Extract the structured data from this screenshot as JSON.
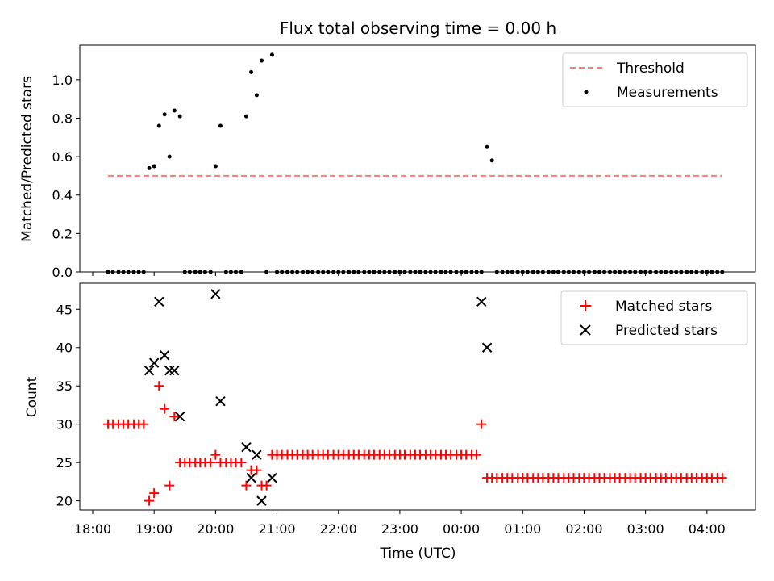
{
  "chart_data": [
    {
      "type": "scatter",
      "title": "Flux total observing time = 0.00 h",
      "xlabel": "",
      "ylabel": "Matched/Predicted stars",
      "ylim": [
        0,
        1.18
      ],
      "yticks": [
        0.0,
        0.2,
        0.4,
        0.6,
        0.8,
        1.0
      ],
      "ytick_labels": [
        "0.0",
        "0.2",
        "0.4",
        "0.6",
        "0.8",
        "1.0"
      ],
      "xlim_hours": [
        17.79,
        28.79
      ],
      "legend": {
        "placement": "top-right",
        "entries": [
          "Threshold",
          "Measurements"
        ]
      },
      "series": [
        {
          "name": "Threshold",
          "kind": "dashed-line",
          "color": "#ff7777",
          "x": [
            18.25,
            28.25
          ],
          "y": [
            0.5,
            0.5
          ]
        },
        {
          "name": "Measurements",
          "kind": "dots",
          "color": "#000000",
          "x": [
            18.25,
            18.33,
            18.42,
            18.5,
            18.58,
            18.67,
            18.75,
            18.83,
            18.92,
            19.0,
            19.08,
            19.17,
            19.25,
            19.33,
            19.42,
            19.5,
            19.58,
            19.67,
            19.75,
            19.83,
            19.92,
            20.0,
            20.08,
            20.17,
            20.25,
            20.33,
            20.42,
            20.5,
            20.58,
            20.67,
            20.75,
            20.83,
            20.92,
            21.0,
            21.08,
            21.17,
            21.25,
            21.33,
            21.42,
            21.5,
            21.58,
            21.67,
            21.75,
            21.83,
            21.92,
            22.0,
            22.08,
            22.17,
            22.25,
            22.33,
            22.42,
            22.5,
            22.58,
            22.67,
            22.75,
            22.83,
            22.92,
            23.0,
            23.08,
            23.17,
            23.25,
            23.33,
            23.42,
            23.5,
            23.58,
            23.67,
            23.75,
            23.83,
            23.92,
            24.0,
            24.08,
            24.17,
            24.25,
            24.33,
            24.42,
            24.5,
            24.58,
            24.67,
            24.75,
            24.83,
            24.92,
            25.0,
            25.08,
            25.17,
            25.25,
            25.33,
            25.42,
            25.5,
            25.58,
            25.67,
            25.75,
            25.83,
            25.92,
            26.0,
            26.08,
            26.17,
            26.25,
            26.33,
            26.42,
            26.5,
            26.58,
            26.67,
            26.75,
            26.83,
            26.92,
            27.0,
            27.08,
            27.17,
            27.25,
            27.33,
            27.42,
            27.5,
            27.58,
            27.67,
            27.75,
            27.83,
            27.92,
            28.0,
            28.08,
            28.17,
            28.25
          ],
          "y": [
            0,
            0,
            0,
            0,
            0,
            0,
            0,
            0,
            0.54,
            0.55,
            0.76,
            0.82,
            0.6,
            0.84,
            0.81,
            0,
            0,
            0,
            0,
            0,
            0,
            0.55,
            0.76,
            0,
            0,
            0,
            0,
            0.81,
            1.04,
            0.92,
            1.1,
            0,
            1.13,
            0,
            0,
            0,
            0,
            0,
            0,
            0,
            0,
            0,
            0,
            0,
            0,
            0,
            0,
            0,
            0,
            0,
            0,
            0,
            0,
            0,
            0,
            0,
            0,
            0,
            0,
            0,
            0,
            0,
            0,
            0,
            0,
            0,
            0,
            0,
            0,
            0,
            0,
            0,
            0,
            0,
            0.65,
            0.58,
            0,
            0,
            0,
            0,
            0,
            0,
            0,
            0,
            0,
            0,
            0,
            0,
            0,
            0,
            0,
            0,
            0,
            0,
            0,
            0,
            0,
            0,
            0,
            0,
            0,
            0,
            0,
            0,
            0,
            0,
            0,
            0,
            0,
            0,
            0,
            0,
            0,
            0,
            0,
            0,
            0,
            0,
            0,
            0,
            0
          ]
        }
      ]
    },
    {
      "type": "scatter",
      "title": "",
      "xlabel": "Time (UTC)",
      "ylabel": "Count",
      "ylim": [
        18.8,
        48.4
      ],
      "yticks": [
        20,
        25,
        30,
        35,
        40,
        45
      ],
      "ytick_labels": [
        "20",
        "25",
        "30",
        "35",
        "40",
        "45"
      ],
      "xlim_hours": [
        17.79,
        28.79
      ],
      "xticks_hours": [
        18,
        19,
        20,
        21,
        22,
        23,
        24,
        25,
        26,
        27,
        28
      ],
      "xtick_labels": [
        "18:00",
        "19:00",
        "20:00",
        "21:00",
        "22:00",
        "23:00",
        "00:00",
        "01:00",
        "02:00",
        "03:00",
        "04:00"
      ],
      "legend": {
        "placement": "top-right",
        "entries": [
          "Matched stars",
          "Predicted stars"
        ]
      },
      "series": [
        {
          "name": "Matched stars",
          "kind": "plus",
          "color": "#ff0000",
          "x": [
            18.25,
            18.33,
            18.42,
            18.5,
            18.58,
            18.67,
            18.75,
            18.83,
            18.92,
            19.0,
            19.08,
            19.17,
            19.25,
            19.33,
            19.42,
            19.5,
            19.58,
            19.67,
            19.75,
            19.83,
            19.92,
            20.0,
            20.08,
            20.17,
            20.25,
            20.33,
            20.42,
            20.5,
            20.58,
            20.67,
            20.75,
            20.83,
            20.92,
            21.0,
            21.08,
            21.17,
            21.25,
            21.33,
            21.42,
            21.5,
            21.58,
            21.67,
            21.75,
            21.83,
            21.92,
            22.0,
            22.08,
            22.17,
            22.25,
            22.33,
            22.42,
            22.5,
            22.58,
            22.67,
            22.75,
            22.83,
            22.92,
            23.0,
            23.08,
            23.17,
            23.25,
            23.33,
            23.42,
            23.5,
            23.58,
            23.67,
            23.75,
            23.83,
            23.92,
            24.0,
            24.08,
            24.17,
            24.25,
            24.33,
            24.42,
            24.5,
            24.58,
            24.67,
            24.75,
            24.83,
            24.92,
            25.0,
            25.08,
            25.17,
            25.25,
            25.33,
            25.42,
            25.5,
            25.58,
            25.67,
            25.75,
            25.83,
            25.92,
            26.0,
            26.08,
            26.17,
            26.25,
            26.33,
            26.42,
            26.5,
            26.58,
            26.67,
            26.75,
            26.83,
            26.92,
            27.0,
            27.08,
            27.17,
            27.25,
            27.33,
            27.42,
            27.5,
            27.58,
            27.67,
            27.75,
            27.83,
            27.92,
            28.0,
            28.08,
            28.17,
            28.25
          ],
          "y": [
            30,
            30,
            30,
            30,
            30,
            30,
            30,
            30,
            20,
            21,
            35,
            32,
            22,
            31,
            25,
            25,
            25,
            25,
            25,
            25,
            25,
            26,
            25,
            25,
            25,
            25,
            25,
            22,
            24,
            24,
            22,
            22,
            26,
            26,
            26,
            26,
            26,
            26,
            26,
            26,
            26,
            26,
            26,
            26,
            26,
            26,
            26,
            26,
            26,
            26,
            26,
            26,
            26,
            26,
            26,
            26,
            26,
            26,
            26,
            26,
            26,
            26,
            26,
            26,
            26,
            26,
            26,
            26,
            26,
            26,
            26,
            26,
            26,
            30,
            23,
            23,
            23,
            23,
            23,
            23,
            23,
            23,
            23,
            23,
            23,
            23,
            23,
            23,
            23,
            23,
            23,
            23,
            23,
            23,
            23,
            23,
            23,
            23,
            23,
            23,
            23,
            23,
            23,
            23,
            23,
            23,
            23,
            23,
            23,
            23,
            23,
            23,
            23,
            23,
            23,
            23,
            23,
            23,
            23,
            23,
            23
          ]
        },
        {
          "name": "Predicted stars",
          "kind": "x",
          "color": "#000000",
          "x": [
            18.92,
            19.0,
            19.08,
            19.17,
            19.25,
            19.33,
            19.42,
            20.0,
            20.08,
            20.5,
            20.58,
            20.67,
            20.75,
            20.92,
            24.33,
            24.42
          ],
          "y": [
            37,
            38,
            46,
            39,
            37,
            37,
            31,
            47,
            33,
            27,
            23,
            26,
            20,
            23,
            46,
            40
          ]
        }
      ]
    }
  ]
}
